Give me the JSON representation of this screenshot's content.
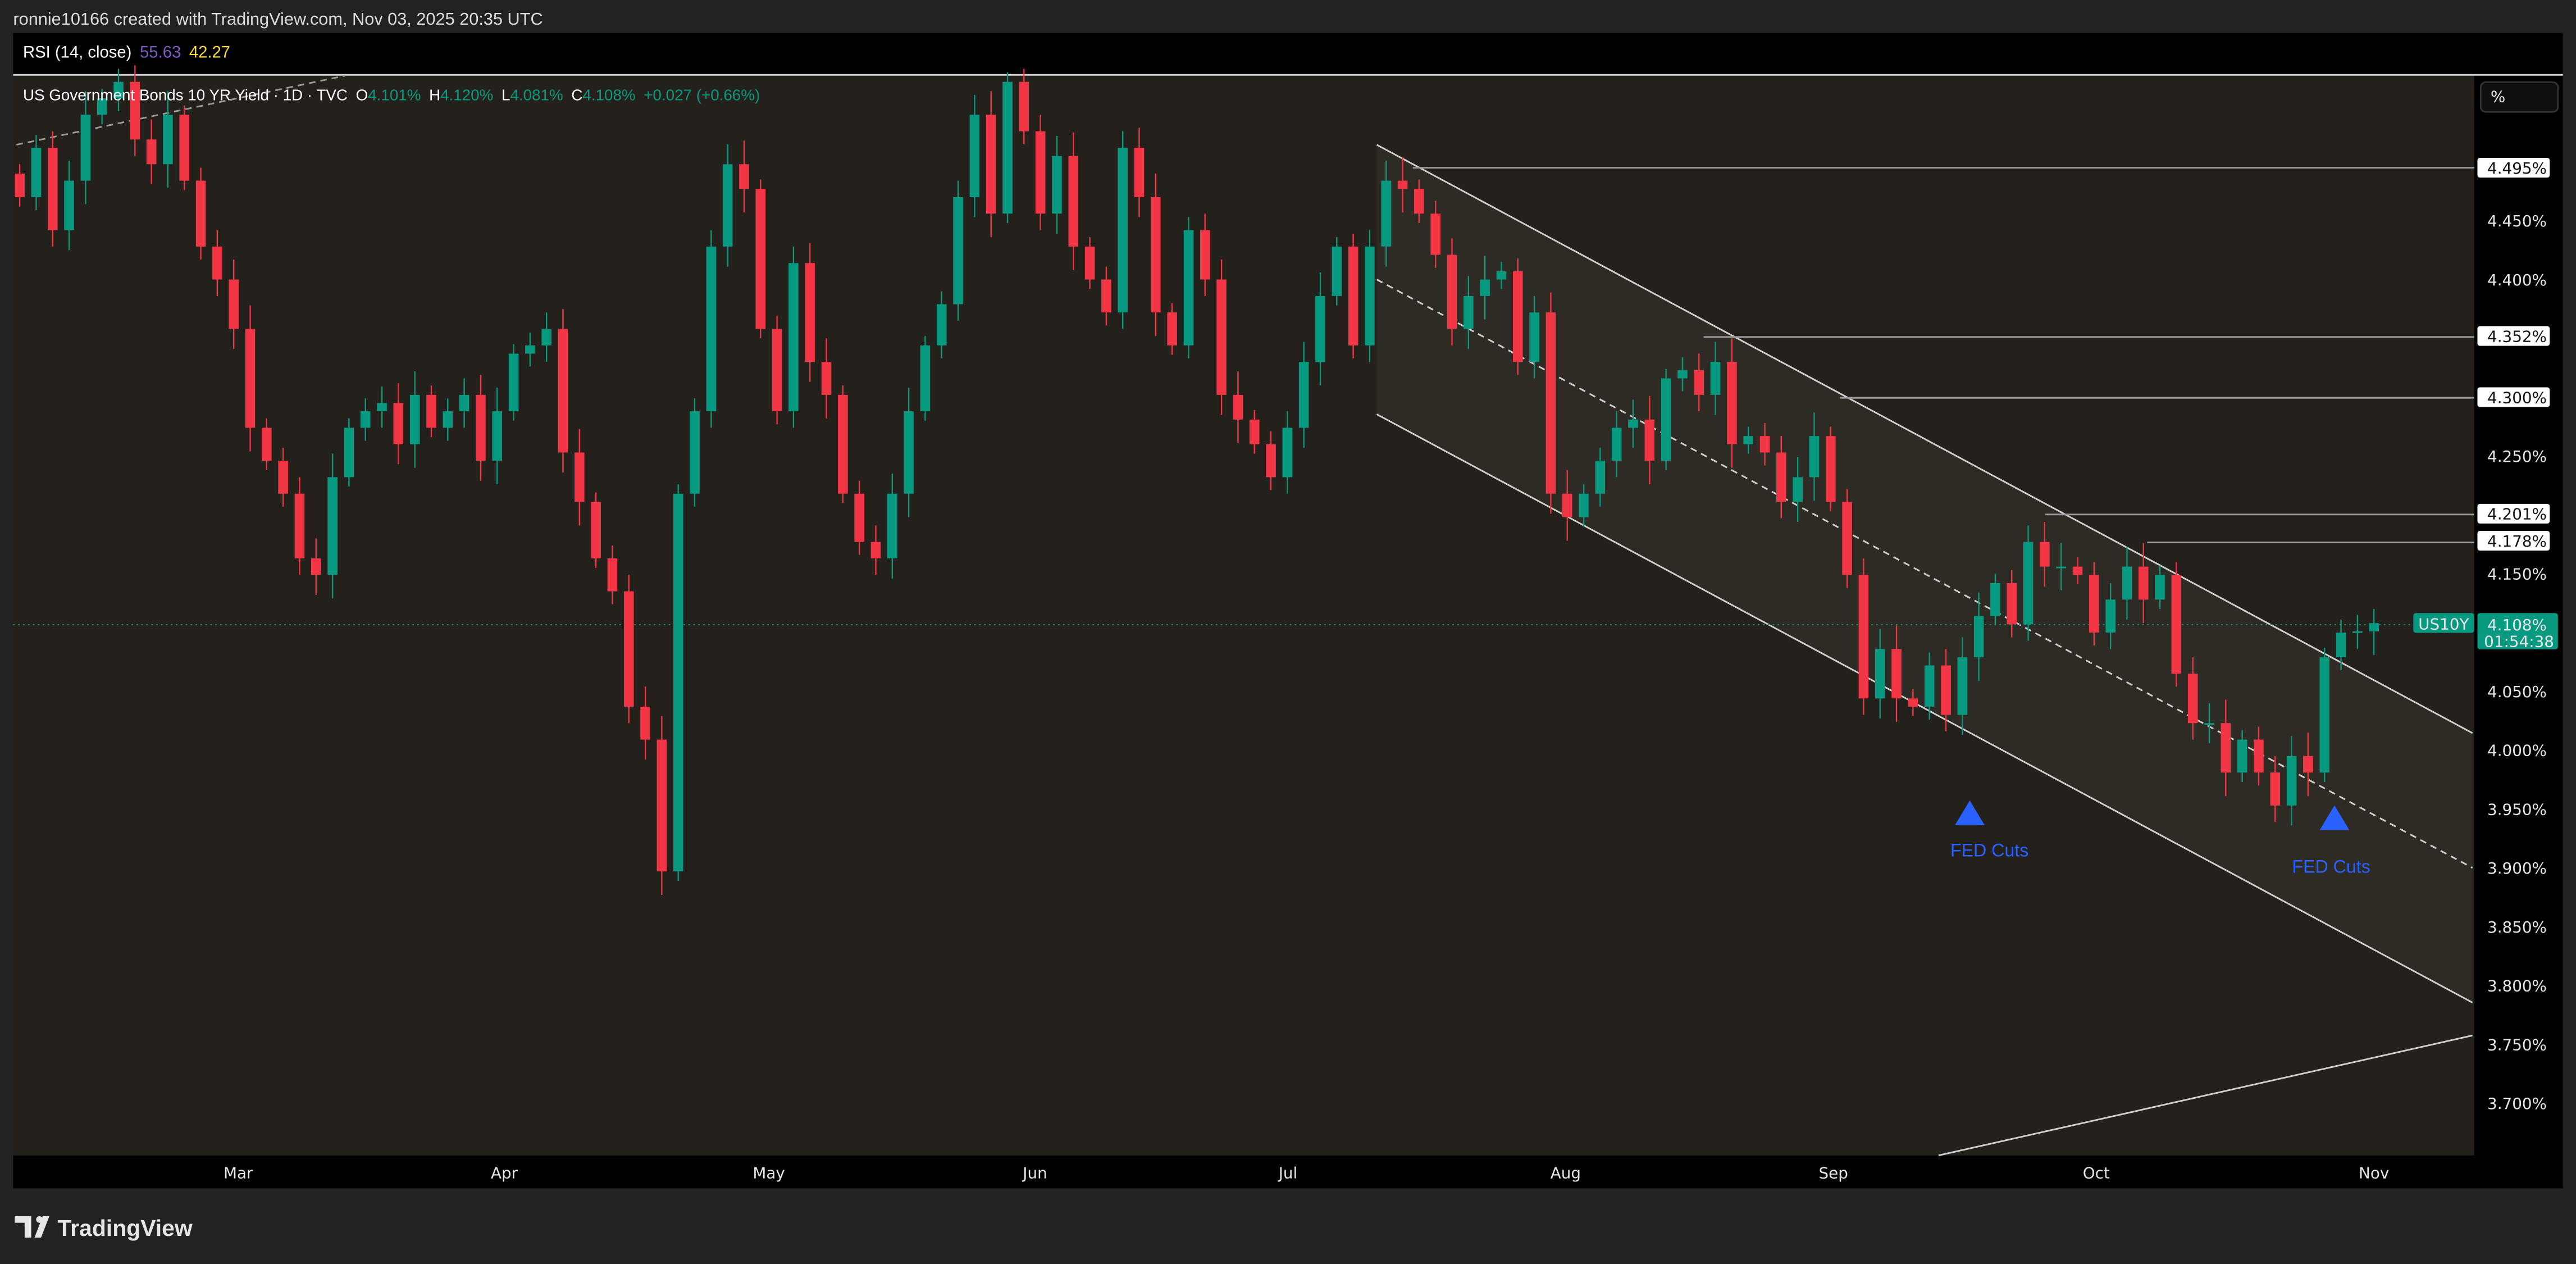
{
  "header": {
    "attribution": "ronnie10166 created with TradingView.com, Nov 03, 2025 20:35 UTC"
  },
  "rsi": {
    "label": "RSI (14, close)",
    "value1": "55.63",
    "value2": "42.27",
    "value1_color": "#7e57c2",
    "value2_color": "#fdd835"
  },
  "legend": {
    "symbol": "US Government Bonds 10 YR Yield · 1D · TVC",
    "o_label": "O",
    "o": "4.101%",
    "h_label": "H",
    "h": "4.120%",
    "l_label": "L",
    "l": "4.081%",
    "c_label": "C",
    "c": "4.108%",
    "change": "+0.027 (+0.66%)"
  },
  "price_axis": {
    "unit_button": "%",
    "ticks": [
      "4.450%",
      "4.400%",
      "4.250%",
      "4.150%",
      "4.050%",
      "4.000%",
      "3.950%",
      "3.900%",
      "3.850%",
      "3.800%",
      "3.750%",
      "3.700%"
    ],
    "level_labels": [
      "4.495%",
      "4.352%",
      "4.300%",
      "4.201%",
      "4.178%"
    ],
    "current_price": "4.108%",
    "countdown": "01:54:38",
    "symbol_tag": "US10Y"
  },
  "time_axis": {
    "labels": [
      "Mar",
      "Apr",
      "May",
      "Jun",
      "Jul",
      "Aug",
      "Sep",
      "Oct",
      "Nov"
    ]
  },
  "annotations": {
    "fed_cuts_1": "FED Cuts",
    "fed_cuts_2": "FED Cuts"
  },
  "footer": {
    "logo": "TradingView"
  },
  "colors": {
    "up": "#089981",
    "down": "#f23645",
    "chart_bg": "#24201b",
    "annotation": "#2962ff"
  },
  "chart_data": {
    "type": "candlestick",
    "title": "US Government Bonds 10 YR Yield · 1D · TVC",
    "x_range": [
      "Feb",
      "Nov 03"
    ],
    "ylim": [
      3.656,
      4.573
    ],
    "last_candle": {
      "open": 4.101,
      "high": 4.12,
      "low": 4.081,
      "close": 4.108
    },
    "closes": [
      4.47,
      4.512,
      4.442,
      4.484,
      4.54,
      4.554,
      4.568,
      4.519,
      4.498,
      4.54,
      4.484,
      4.428,
      4.4,
      4.358,
      4.274,
      4.246,
      4.218,
      4.163,
      4.149,
      4.232,
      4.274,
      4.288,
      4.295,
      4.26,
      4.302,
      4.274,
      4.288,
      4.302,
      4.246,
      4.288,
      4.337,
      4.344,
      4.358,
      4.253,
      4.211,
      4.163,
      4.135,
      4.037,
      4.009,
      3.897,
      4.218,
      4.288,
      4.428,
      4.498,
      4.477,
      4.358,
      4.288,
      4.414,
      4.33,
      4.302,
      4.218,
      4.177,
      4.163,
      4.218,
      4.288,
      4.344,
      4.379,
      4.47,
      4.54,
      4.456,
      4.568,
      4.526,
      4.456,
      4.505,
      4.428,
      4.4,
      4.372,
      4.512,
      4.47,
      4.372,
      4.344,
      4.442,
      4.4,
      4.302,
      4.281,
      4.26,
      4.232,
      4.274,
      4.33,
      4.386,
      4.428,
      4.344,
      4.428,
      4.484,
      4.477,
      4.456,
      4.421,
      4.358,
      4.386,
      4.4,
      4.407,
      4.33,
      4.372,
      4.218,
      4.198,
      4.218,
      4.246,
      4.274,
      4.281,
      4.246,
      4.316,
      4.323,
      4.302,
      4.33,
      4.26,
      4.267,
      4.253,
      4.211,
      4.232,
      4.267,
      4.211,
      4.149,
      4.044,
      4.086,
      4.044,
      4.037,
      4.072,
      4.03,
      4.079,
      4.114,
      4.142,
      4.107,
      4.177,
      4.156,
      4.156,
      4.149,
      4.1,
      4.128,
      4.156,
      4.128,
      4.149,
      4.065,
      4.023,
      4.023,
      3.981,
      4.009,
      3.981,
      3.953,
      3.995,
      3.981,
      4.079,
      4.1,
      4.101,
      4.108
    ]
  }
}
